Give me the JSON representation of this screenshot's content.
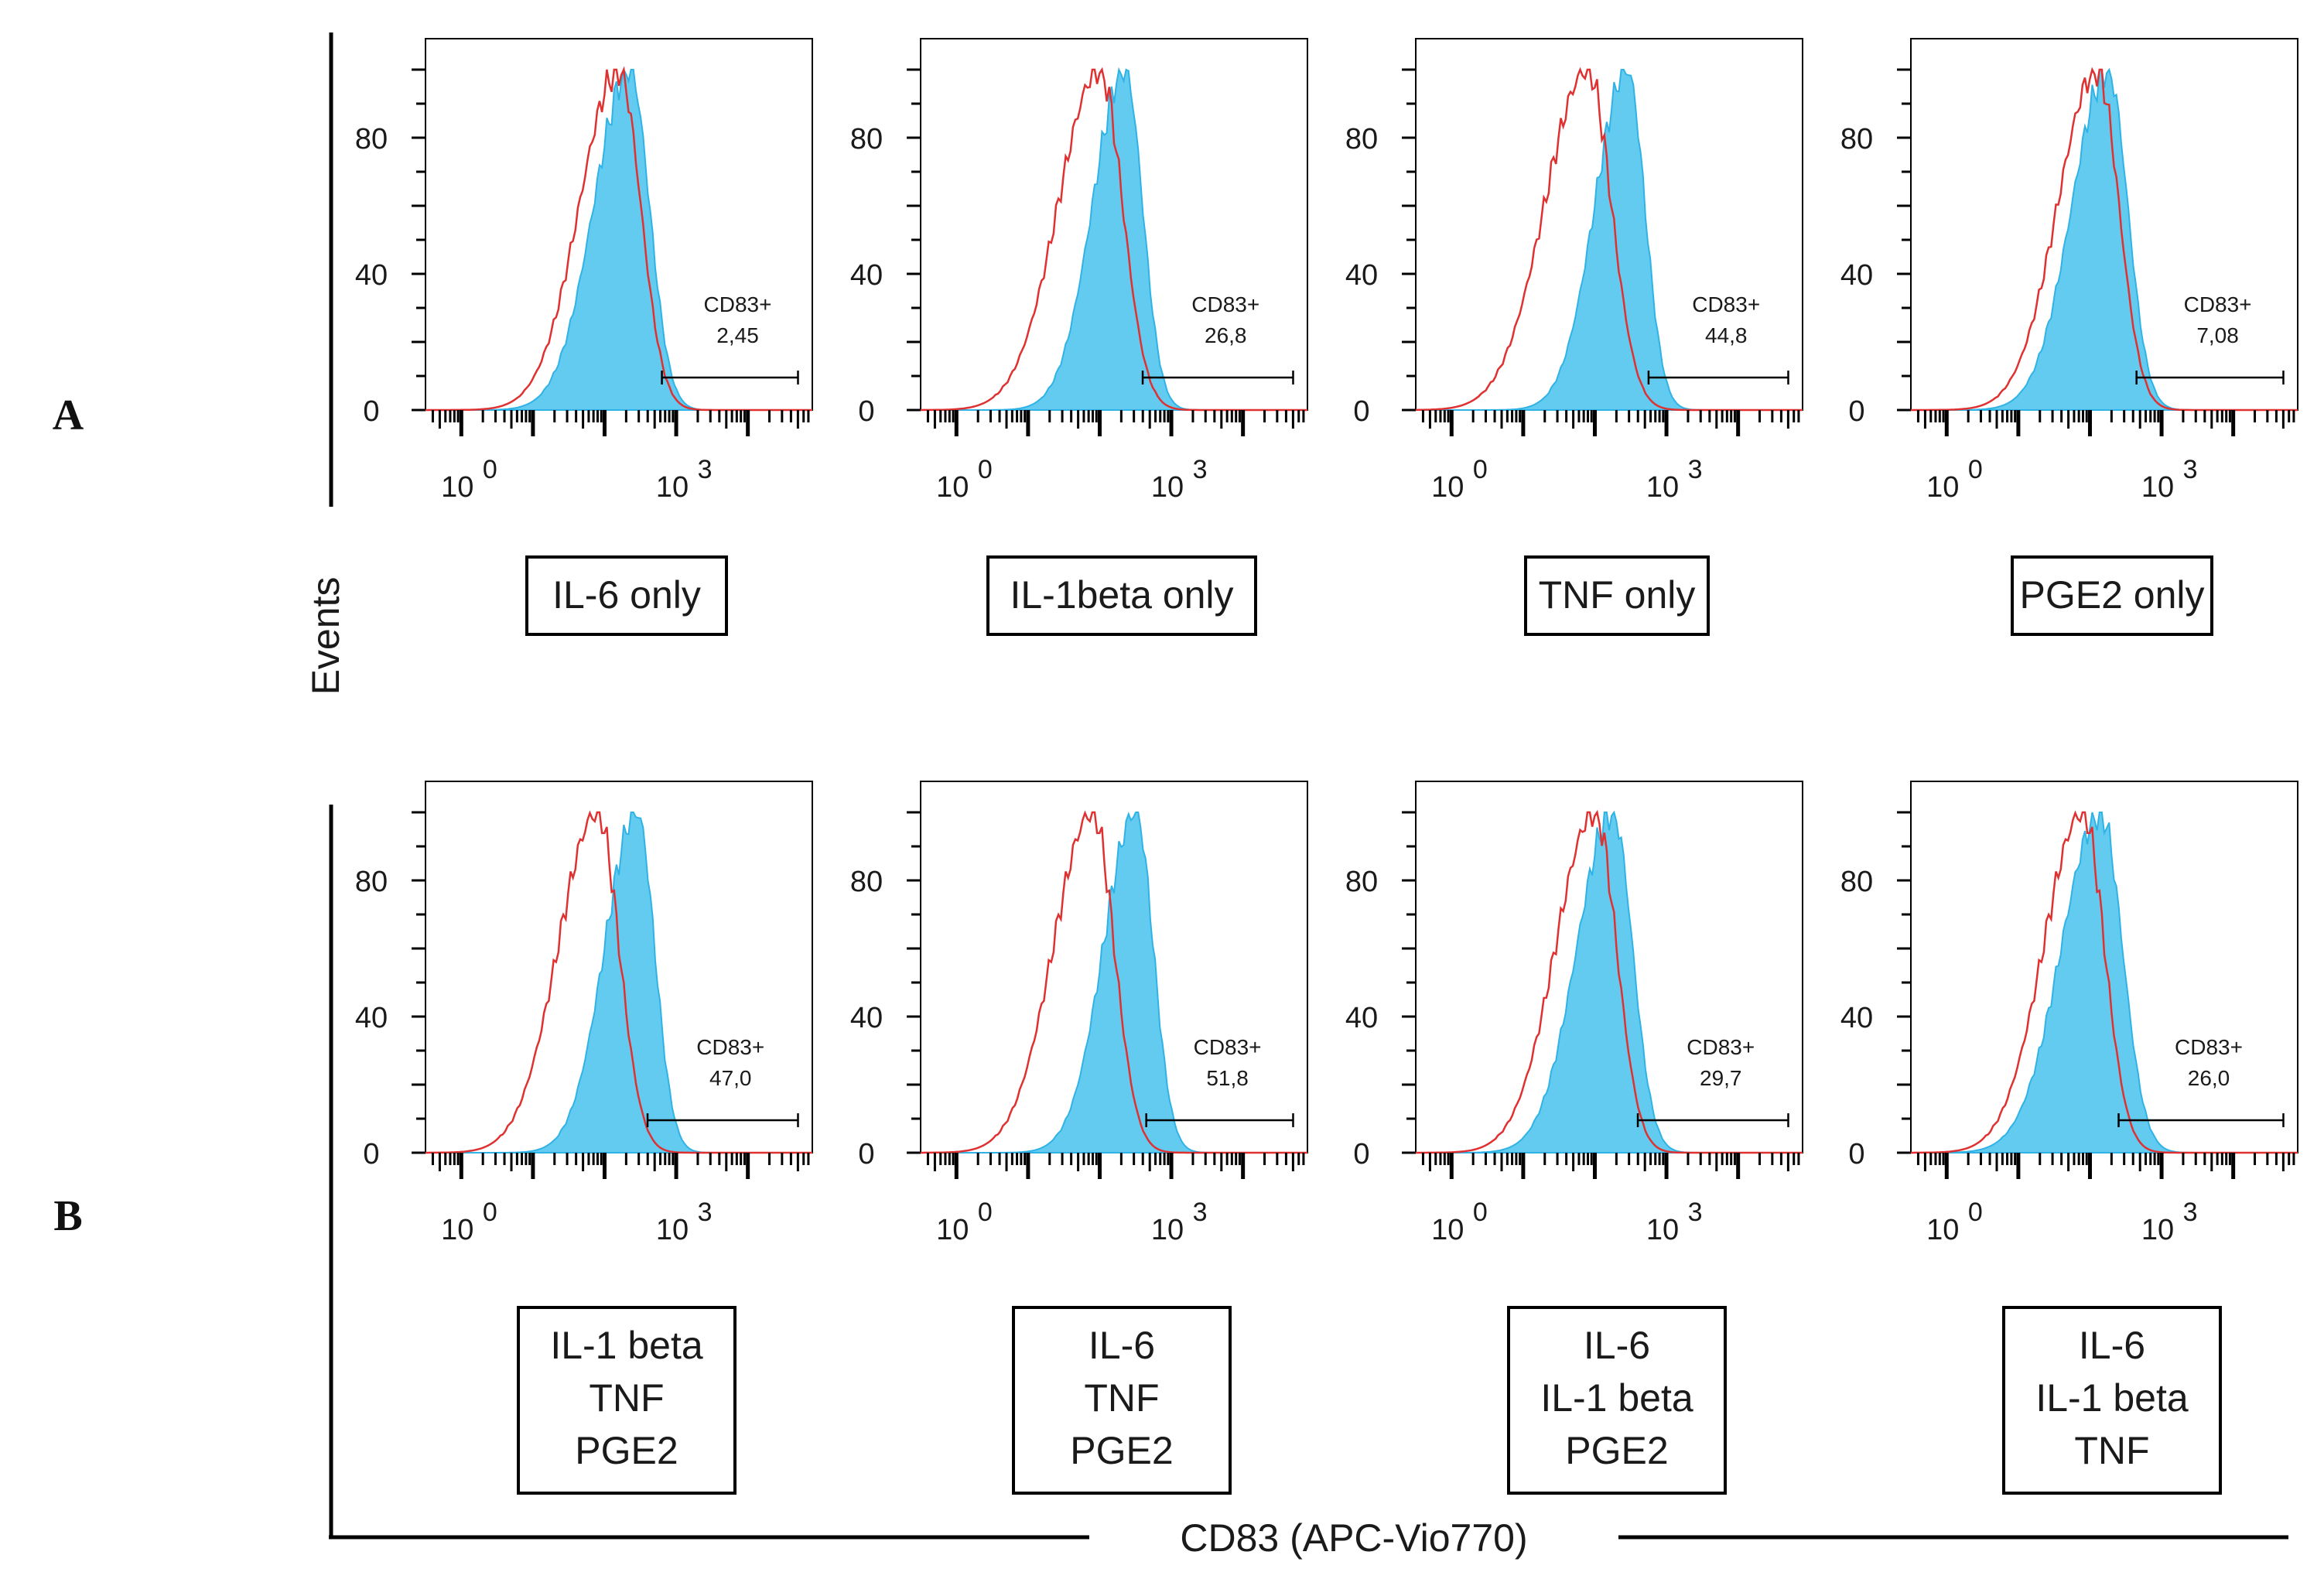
{
  "figure": {
    "y_axis_label": "Events",
    "x_axis_label": "CD83 (APC-Vio770)",
    "colors": {
      "isotype": "#e03131",
      "stained": "#63cbef",
      "stained_edge": "#2fb3e6",
      "axis": "#000000"
    }
  },
  "chart_data": [
    {
      "type": "histogram",
      "row_label": "A",
      "condition": [
        "IL-6 only"
      ],
      "gate_label": "CD83+",
      "gate_value": "2,45",
      "y_ticks": [
        "0",
        "40",
        "80"
      ],
      "x_ticks": [
        {
          "base": "10",
          "exp": "0"
        },
        {
          "base": "10",
          "exp": "3"
        }
      ],
      "isotype_peak_log": 2.2,
      "isotype_sd_log": 0.55,
      "stained_peak_log": 2.35,
      "stained_sd_log": 0.5,
      "gate_start_log": 2.8,
      "gate_end_log": 4.7
    },
    {
      "type": "histogram",
      "row_label": "A",
      "condition": [
        "IL-1beta only"
      ],
      "gate_label": "CD83+",
      "gate_value": "26,8",
      "y_ticks": [
        "0",
        "40",
        "80"
      ],
      "x_ticks": [
        {
          "base": "10",
          "exp": "0"
        },
        {
          "base": "10",
          "exp": "3"
        }
      ],
      "isotype_peak_log": 2.0,
      "isotype_sd_log": 0.58,
      "stained_peak_log": 2.35,
      "stained_sd_log": 0.45,
      "gate_start_log": 2.6,
      "gate_end_log": 4.7
    },
    {
      "type": "histogram",
      "row_label": "A",
      "condition": [
        "TNF only"
      ],
      "gate_label": "CD83+",
      "gate_value": "44,8",
      "y_ticks": [
        "0",
        "40",
        "80"
      ],
      "x_ticks": [
        {
          "base": "10",
          "exp": "0"
        },
        {
          "base": "10",
          "exp": "3"
        }
      ],
      "isotype_peak_log": 1.9,
      "isotype_sd_log": 0.6,
      "stained_peak_log": 2.45,
      "stained_sd_log": 0.45,
      "gate_start_log": 2.75,
      "gate_end_log": 4.7
    },
    {
      "type": "histogram",
      "row_label": "A",
      "condition": [
        "PGE2 only"
      ],
      "gate_label": "CD83+",
      "gate_value": "7,08",
      "y_ticks": [
        "0",
        "40",
        "80"
      ],
      "x_ticks": [
        {
          "base": "10",
          "exp": "0"
        },
        {
          "base": "10",
          "exp": "3"
        }
      ],
      "isotype_peak_log": 2.1,
      "isotype_sd_log": 0.55,
      "stained_peak_log": 2.25,
      "stained_sd_log": 0.5,
      "gate_start_log": 2.65,
      "gate_end_log": 4.7
    },
    {
      "type": "histogram",
      "row_label": "B",
      "condition": [
        "IL-1 beta",
        "TNF",
        "PGE2"
      ],
      "gate_label": "CD83+",
      "gate_value": "47,0",
      "y_ticks": [
        "0",
        "40",
        "80"
      ],
      "x_ticks": [
        {
          "base": "10",
          "exp": "0"
        },
        {
          "base": "10",
          "exp": "3"
        }
      ],
      "isotype_peak_log": 1.9,
      "isotype_sd_log": 0.55,
      "stained_peak_log": 2.45,
      "stained_sd_log": 0.45,
      "gate_start_log": 2.6,
      "gate_end_log": 4.7
    },
    {
      "type": "histogram",
      "row_label": "B",
      "condition": [
        "IL-6",
        "TNF",
        "PGE2"
      ],
      "gate_label": "CD83+",
      "gate_value": "51,8",
      "y_ticks": [
        "0",
        "40",
        "80"
      ],
      "x_ticks": [
        {
          "base": "10",
          "exp": "0"
        },
        {
          "base": "10",
          "exp": "3"
        }
      ],
      "isotype_peak_log": 1.9,
      "isotype_sd_log": 0.55,
      "stained_peak_log": 2.5,
      "stained_sd_log": 0.45,
      "gate_start_log": 2.65,
      "gate_end_log": 4.7
    },
    {
      "type": "histogram",
      "row_label": "B",
      "condition": [
        "IL-6",
        "IL-1 beta",
        "PGE2"
      ],
      "gate_label": "CD83+",
      "gate_value": "29,7",
      "y_ticks": [
        "0",
        "40",
        "80"
      ],
      "x_ticks": [
        {
          "base": "10",
          "exp": "0"
        },
        {
          "base": "10",
          "exp": "3"
        }
      ],
      "isotype_peak_log": 2.0,
      "isotype_sd_log": 0.55,
      "stained_peak_log": 2.25,
      "stained_sd_log": 0.5,
      "gate_start_log": 2.6,
      "gate_end_log": 4.7
    },
    {
      "type": "histogram",
      "row_label": "B",
      "condition": [
        "IL-6",
        "IL-1 beta",
        "TNF"
      ],
      "gate_label": "CD83+",
      "gate_value": "26,0",
      "y_ticks": [
        "0",
        "40",
        "80"
      ],
      "x_ticks": [
        {
          "base": "10",
          "exp": "0"
        },
        {
          "base": "10",
          "exp": "3"
        }
      ],
      "isotype_peak_log": 1.9,
      "isotype_sd_log": 0.55,
      "stained_peak_log": 2.15,
      "stained_sd_log": 0.55,
      "gate_start_log": 2.4,
      "gate_end_log": 4.7
    }
  ]
}
